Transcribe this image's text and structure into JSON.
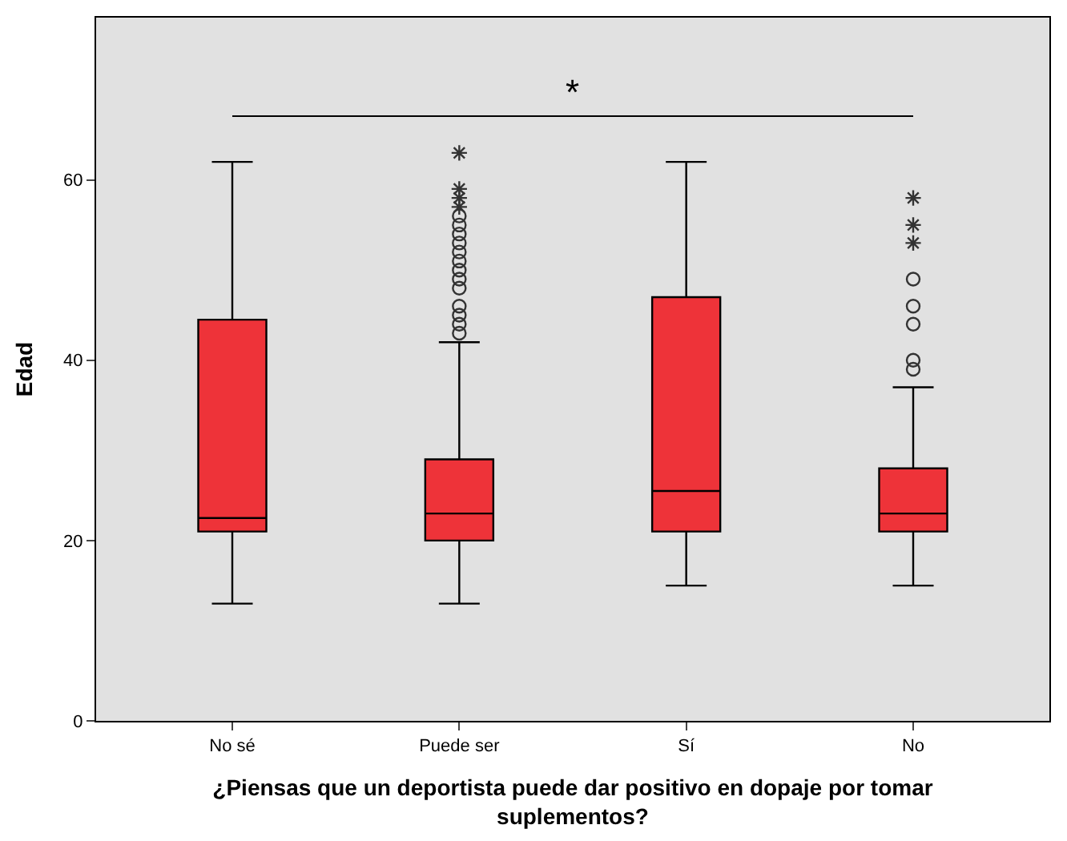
{
  "chart_data": {
    "type": "box",
    "xlabel": "¿Piensas que un deportista puede dar positivo en dopaje por tomar suplementos?",
    "ylabel": "Edad",
    "categories": [
      "No sé",
      "Puede ser",
      "Sí",
      "No"
    ],
    "color": "#ee3339",
    "boxes": [
      {
        "low": 13,
        "q1": 21,
        "median": 22.5,
        "q3": 44.5,
        "high": 62
      },
      {
        "low": 13,
        "q1": 20,
        "median": 23,
        "q3": 29,
        "high": 42,
        "outliers": [
          43,
          44,
          45,
          46,
          48,
          49,
          50,
          51,
          52,
          53,
          54,
          55,
          56,
          57,
          58,
          59,
          63
        ]
      },
      {
        "low": 15,
        "q1": 21,
        "median": 25.5,
        "q3": 47,
        "high": 62
      },
      {
        "low": 15,
        "q1": 21,
        "median": 23,
        "q3": 28,
        "high": 37,
        "outliers": [
          39,
          40,
          44,
          46,
          49,
          53,
          55,
          58
        ]
      }
    ],
    "annotations": [
      "*"
    ],
    "ylim": [
      0,
      78
    ],
    "yticks": [
      0,
      20,
      40,
      60
    ],
    "grid": false
  }
}
